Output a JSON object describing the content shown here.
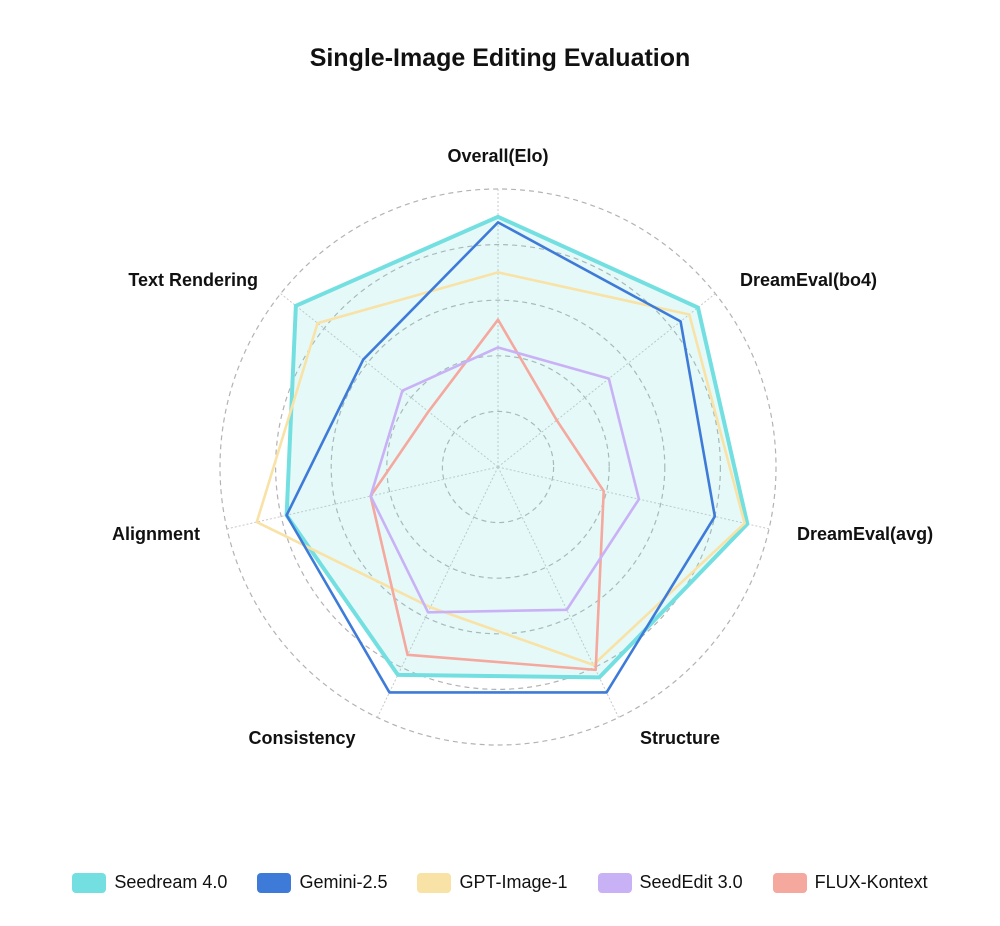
{
  "chart_data": {
    "type": "radar",
    "title": "Single-Image Editing Evaluation",
    "axes": [
      "Overall(Elo)",
      "DreamEval(bo4)",
      "DreamEval(avg)",
      "Structure",
      "Consistency",
      "Alignment",
      "Text Rendering"
    ],
    "range": [
      0,
      1
    ],
    "rings": [
      0.2,
      0.4,
      0.6,
      0.8,
      1.0
    ],
    "grid": "dashed",
    "legend_position": "bottom",
    "series": [
      {
        "name": "Seedream 4.0",
        "color": "#74DFE0",
        "fill": true,
        "values": [
          0.9,
          0.92,
          0.92,
          0.84,
          0.83,
          0.78,
          0.93
        ]
      },
      {
        "name": "Gemini-2.5",
        "color": "#3E7BD8",
        "fill": false,
        "values": [
          0.88,
          0.84,
          0.8,
          0.9,
          0.9,
          0.78,
          0.62
        ]
      },
      {
        "name": "GPT-Image-1",
        "color": "#F8E2A6",
        "fill": false,
        "values": [
          0.7,
          0.88,
          0.91,
          0.79,
          0.56,
          0.89,
          0.83
        ]
      },
      {
        "name": "SeedEdit 3.0",
        "color": "#C9B1F6",
        "fill": false,
        "values": [
          0.43,
          0.51,
          0.52,
          0.57,
          0.58,
          0.47,
          0.44
        ]
      },
      {
        "name": "FLUX-Kontext",
        "color": "#F4A89E",
        "fill": false,
        "values": [
          0.53,
          0.27,
          0.39,
          0.81,
          0.75,
          0.47,
          0.32
        ]
      }
    ]
  }
}
